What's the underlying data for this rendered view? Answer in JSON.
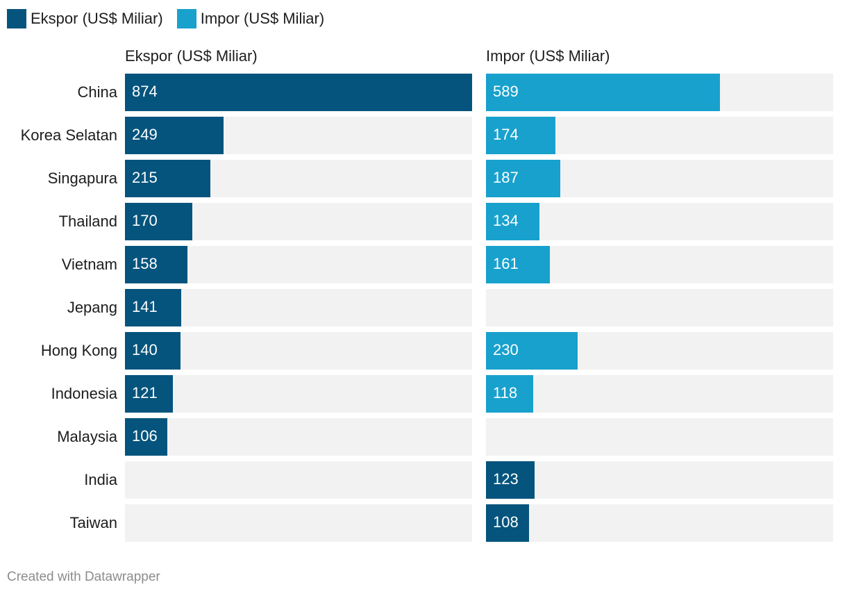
{
  "legend": {
    "items": [
      {
        "label": "Ekspor (US$ Miliar)",
        "color": "#04547d"
      },
      {
        "label": "Impor (US$ Miliar)",
        "color": "#18a1cd"
      }
    ]
  },
  "credit": "Created with Datawrapper",
  "chart_data": {
    "type": "bar",
    "orientation": "horizontal",
    "title": "",
    "categories": [
      "China",
      "Korea Selatan",
      "Singapura",
      "Thailand",
      "Vietnam",
      "Jepang",
      "Hong Kong",
      "Indonesia",
      "Malaysia",
      "India",
      "Taiwan"
    ],
    "series": [
      {
        "name": "Ekspor (US$ Miliar)",
        "color": "#04547d",
        "values": [
          874,
          249,
          215,
          170,
          158,
          141,
          140,
          121,
          106,
          null,
          null
        ]
      },
      {
        "name": "Impor (US$ Miliar)",
        "color": "#18a1cd",
        "alt_color": "#04547d",
        "alt_color_categories": [
          "India",
          "Taiwan"
        ],
        "values": [
          589,
          174,
          187,
          134,
          161,
          null,
          230,
          118,
          null,
          123,
          108
        ]
      }
    ],
    "xlim": [
      0,
      874
    ],
    "grid": false,
    "legend_position": "top-left"
  }
}
